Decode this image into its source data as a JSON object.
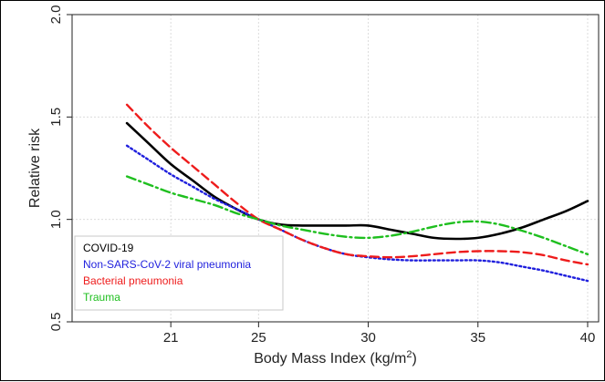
{
  "chart_data": {
    "type": "line",
    "xlabel": "Body Mass Index (kg/m",
    "xlabel_sup": "2",
    "xlabel_suffix": ")",
    "ylabel": "Relative risk",
    "xlim": [
      16.5,
      40.5
    ],
    "ylim": [
      0.5,
      2.0
    ],
    "x_ticks": [
      21,
      25,
      30,
      35,
      40
    ],
    "y_ticks": [
      0.5,
      1.0,
      1.5,
      2.0
    ],
    "x_tick_labels": [
      "21",
      "25",
      "30",
      "35",
      "40"
    ],
    "y_tick_labels": [
      "0.5",
      "1.0",
      "1.5",
      "2.0"
    ],
    "grid": true,
    "legend_position": "bottom-left",
    "series": [
      {
        "name": "COVID-19",
        "color": "#000000",
        "dash": "solid",
        "points": [
          [
            19,
            1.47
          ],
          [
            20,
            1.37
          ],
          [
            21,
            1.27
          ],
          [
            22,
            1.19
          ],
          [
            23,
            1.11
          ],
          [
            24,
            1.05
          ],
          [
            25,
            1.0
          ],
          [
            26,
            0.975
          ],
          [
            27,
            0.97
          ],
          [
            28,
            0.97
          ],
          [
            29,
            0.97
          ],
          [
            30,
            0.97
          ],
          [
            31,
            0.95
          ],
          [
            32,
            0.93
          ],
          [
            33,
            0.91
          ],
          [
            34,
            0.905
          ],
          [
            35,
            0.91
          ],
          [
            36,
            0.93
          ],
          [
            37,
            0.96
          ],
          [
            38,
            1.0
          ],
          [
            39,
            1.04
          ],
          [
            40,
            1.09
          ]
        ]
      },
      {
        "name": "Non-SARS-CoV-2 viral pneumonia",
        "color": "#1f1fdd",
        "dash": "dotted",
        "points": [
          [
            19,
            1.36
          ],
          [
            20,
            1.29
          ],
          [
            21,
            1.22
          ],
          [
            22,
            1.16
          ],
          [
            23,
            1.1
          ],
          [
            24,
            1.05
          ],
          [
            25,
            1.0
          ],
          [
            26,
            0.95
          ],
          [
            27,
            0.9
          ],
          [
            28,
            0.86
          ],
          [
            29,
            0.83
          ],
          [
            30,
            0.815
          ],
          [
            31,
            0.805
          ],
          [
            32,
            0.8
          ],
          [
            33,
            0.8
          ],
          [
            34,
            0.8
          ],
          [
            35,
            0.8
          ],
          [
            36,
            0.79
          ],
          [
            37,
            0.77
          ],
          [
            38,
            0.75
          ],
          [
            39,
            0.725
          ],
          [
            40,
            0.7
          ]
        ]
      },
      {
        "name": "Bacterial pneumonia",
        "color": "#ee1c1c",
        "dash": "dashed",
        "points": [
          [
            19,
            1.56
          ],
          [
            20,
            1.45
          ],
          [
            21,
            1.35
          ],
          [
            22,
            1.26
          ],
          [
            23,
            1.17
          ],
          [
            24,
            1.08
          ],
          [
            25,
            1.0
          ],
          [
            26,
            0.95
          ],
          [
            27,
            0.9
          ],
          [
            28,
            0.86
          ],
          [
            29,
            0.83
          ],
          [
            30,
            0.82
          ],
          [
            31,
            0.815
          ],
          [
            32,
            0.82
          ],
          [
            33,
            0.83
          ],
          [
            34,
            0.84
          ],
          [
            35,
            0.845
          ],
          [
            36,
            0.845
          ],
          [
            37,
            0.84
          ],
          [
            38,
            0.825
          ],
          [
            39,
            0.8
          ],
          [
            40,
            0.78
          ]
        ]
      },
      {
        "name": "Trauma",
        "color": "#1fbf1f",
        "dash": "dashdot",
        "points": [
          [
            19,
            1.21
          ],
          [
            20,
            1.17
          ],
          [
            21,
            1.13
          ],
          [
            22,
            1.1
          ],
          [
            23,
            1.07
          ],
          [
            24,
            1.03
          ],
          [
            25,
            1.0
          ],
          [
            26,
            0.97
          ],
          [
            27,
            0.95
          ],
          [
            28,
            0.93
          ],
          [
            29,
            0.915
          ],
          [
            30,
            0.91
          ],
          [
            31,
            0.92
          ],
          [
            32,
            0.94
          ],
          [
            33,
            0.965
          ],
          [
            34,
            0.985
          ],
          [
            35,
            0.99
          ],
          [
            36,
            0.975
          ],
          [
            37,
            0.945
          ],
          [
            38,
            0.91
          ],
          [
            39,
            0.87
          ],
          [
            40,
            0.83
          ]
        ]
      }
    ]
  }
}
